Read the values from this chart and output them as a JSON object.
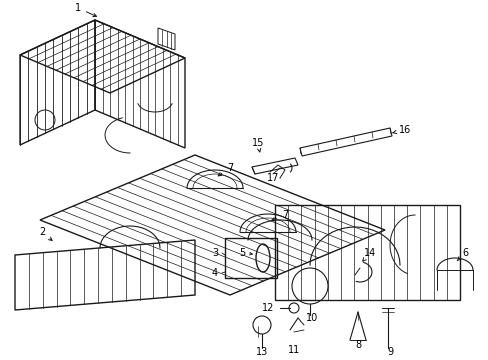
{
  "bg": "#ffffff",
  "lc": "#1a1a1a",
  "fig_w": 4.89,
  "fig_h": 3.6,
  "dpi": 100,
  "fs": 7.0
}
